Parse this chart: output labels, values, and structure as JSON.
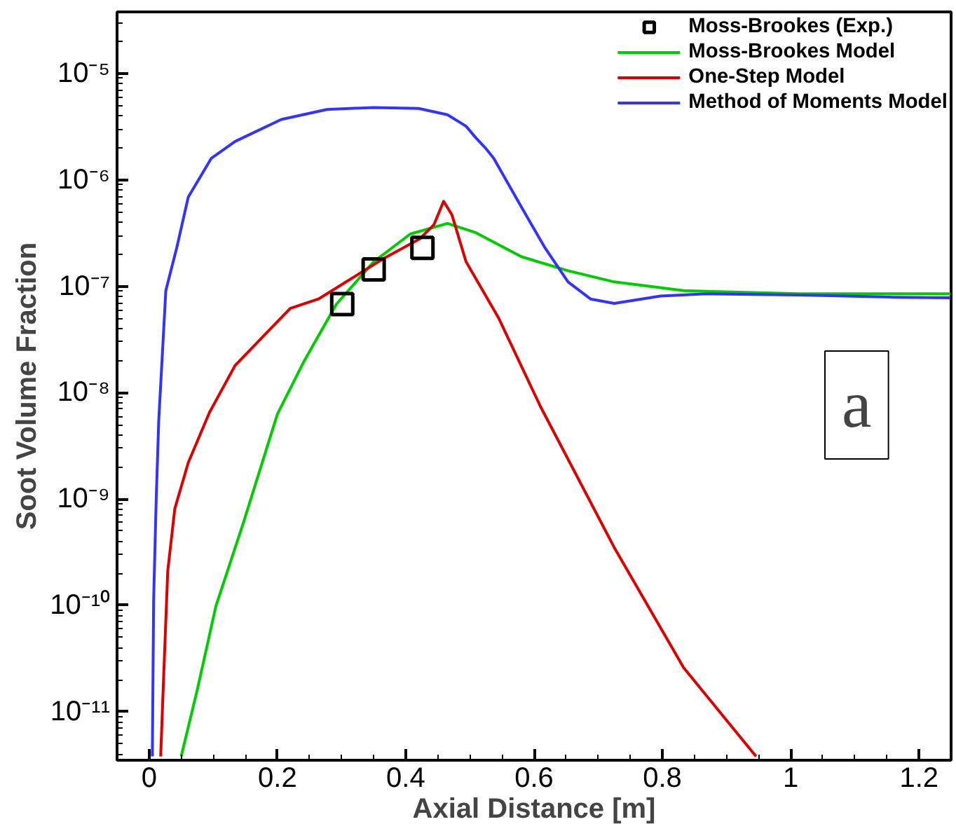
{
  "chart_data": {
    "type": "line",
    "xlabel": "Axial Distance [m]",
    "ylabel": "Soot Volume Fraction",
    "xlim": [
      -0.05,
      1.25
    ],
    "ylim": [
      3.5e-12,
      3.8e-05
    ],
    "log": "y",
    "xticks": [
      0,
      0.2,
      0.4,
      0.6,
      0.8,
      1,
      1.2
    ],
    "yticks": [
      {
        "value": 1e-11,
        "label": "10⁻¹¹"
      },
      {
        "value": 1e-10,
        "label": "10⁻¹⁰"
      },
      {
        "value": 1e-09,
        "label": "10⁻⁹"
      },
      {
        "value": 1e-08,
        "label": "10⁻⁸"
      },
      {
        "value": 1e-07,
        "label": "10⁻⁷"
      },
      {
        "value": 1e-06,
        "label": "10⁻⁶"
      },
      {
        "value": 1e-05,
        "label": "10⁻⁵"
      }
    ],
    "grid": false,
    "legend": "top right",
    "annotations": [
      "a"
    ],
    "series": [
      {
        "name": "Moss-Brookes (Exp.)",
        "type": "scatter",
        "marker": "square",
        "color": "#000000",
        "x": [
          0.301,
          0.35,
          0.426
        ],
        "values": [
          6.8e-08,
          1.44e-07,
          2.3e-07
        ]
      },
      {
        "name": "Moss-Brookes Model",
        "color": "#00cc00",
        "x": [
          0.05,
          0.076,
          0.104,
          0.147,
          0.2,
          0.242,
          0.292,
          0.35,
          0.407,
          0.465,
          0.509,
          0.58,
          0.653,
          0.725,
          0.833,
          1.013,
          1.249
        ],
        "values": [
          3.8e-12,
          1.7e-11,
          9.8e-11,
          6e-10,
          6.3e-09,
          2e-08,
          6.8e-08,
          1.7e-07,
          3.1e-07,
          3.9e-07,
          3.2e-07,
          1.9e-07,
          1.4e-07,
          1.1e-07,
          9.1e-08,
          8.5e-08,
          8.5e-08
        ]
      },
      {
        "name": "One-Step Model",
        "color": "#dd0000",
        "x": [
          0.018,
          0.022,
          0.029,
          0.04,
          0.061,
          0.094,
          0.134,
          0.184,
          0.22,
          0.264,
          0.307,
          0.364,
          0.422,
          0.444,
          0.459,
          0.472,
          0.494,
          0.545,
          0.61,
          0.725,
          0.833,
          0.946
        ],
        "values": [
          3.8e-12,
          1.7e-11,
          2.1e-10,
          8.1e-10,
          2.2e-09,
          6.5e-09,
          1.8e-08,
          3.7e-08,
          6.2e-08,
          7.6e-08,
          1.1e-07,
          1.8e-07,
          2.8e-07,
          3.8e-07,
          6.3e-07,
          4.7e-07,
          1.7e-07,
          5e-08,
          7.4e-09,
          3.5e-10,
          2.6e-11,
          3.8e-12
        ]
      },
      {
        "name": "Method of Moments Model",
        "color": "#3333ff",
        "x": [
          0.005,
          0.007,
          0.011,
          0.015,
          0.026,
          0.043,
          0.061,
          0.097,
          0.134,
          0.206,
          0.277,
          0.35,
          0.42,
          0.465,
          0.494,
          0.509,
          0.524,
          0.537,
          0.58,
          0.617,
          0.653,
          0.688,
          0.725,
          0.797,
          0.87,
          1.013,
          1.158,
          1.249
        ],
        "values": [
          3.8e-12,
          1.1e-10,
          9.8e-10,
          5.5e-09,
          9.1e-08,
          2.3e-07,
          6.9e-07,
          1.6e-06,
          2.3e-06,
          3.7e-06,
          4.6e-06,
          4.8e-06,
          4.7e-06,
          4.1e-06,
          3.2e-06,
          2.5e-06,
          2e-06,
          1.6e-06,
          5.6e-07,
          2.3e-07,
          1.1e-07,
          7.6e-08,
          6.9e-08,
          8.1e-08,
          8.5e-08,
          8.3e-08,
          7.9e-08,
          7.8e-08
        ]
      }
    ]
  }
}
